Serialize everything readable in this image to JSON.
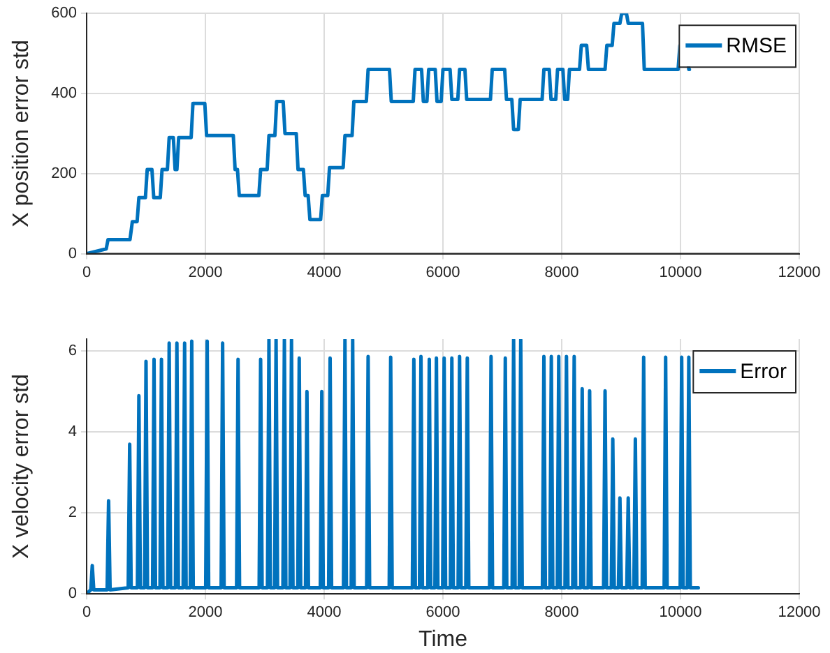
{
  "chart_data": [
    {
      "type": "line",
      "ylabel": "X position error std",
      "xlim": [
        0,
        12000
      ],
      "xticks": [
        0,
        2000,
        4000,
        6000,
        8000,
        10000,
        12000
      ],
      "ylim": [
        0,
        600
      ],
      "yticks": [
        0,
        200,
        400,
        600
      ],
      "grid": true,
      "legend": "top right",
      "marker": "none",
      "line_style": "solid",
      "series": [
        {
          "name": "RMSE",
          "color": "#0072bd",
          "x": [
            0,
            330,
            360,
            730,
            770,
            850,
            880,
            990,
            1020,
            1100,
            1130,
            1240,
            1270,
            1360,
            1390,
            1460,
            1490,
            1520,
            1550,
            1760,
            1790,
            1990,
            2020,
            2470,
            2500,
            2540,
            2570,
            2900,
            2930,
            3040,
            3070,
            3170,
            3200,
            3310,
            3340,
            3530,
            3560,
            3650,
            3680,
            3730,
            3760,
            3940,
            3970,
            4060,
            4090,
            4320,
            4350,
            4470,
            4500,
            4710,
            4740,
            5100,
            5130,
            5500,
            5530,
            5640,
            5670,
            5730,
            5760,
            5870,
            5900,
            5970,
            6000,
            6120,
            6150,
            6250,
            6280,
            6370,
            6400,
            6800,
            6830,
            7040,
            7070,
            7160,
            7190,
            7270,
            7300,
            7670,
            7700,
            7790,
            7820,
            7900,
            7930,
            8020,
            8050,
            8100,
            8130,
            8300,
            8330,
            8420,
            8450,
            8730,
            8760,
            8850,
            8880,
            8980,
            9010,
            9090,
            9120,
            9360,
            9390,
            9960,
            9990,
            10110,
            10140,
            10150
          ],
          "values": [
            0,
            12,
            35,
            35,
            80,
            80,
            140,
            140,
            210,
            210,
            140,
            140,
            210,
            210,
            290,
            290,
            210,
            210,
            290,
            290,
            375,
            375,
            295,
            295,
            210,
            210,
            145,
            145,
            210,
            210,
            295,
            295,
            380,
            380,
            300,
            300,
            210,
            210,
            145,
            145,
            85,
            85,
            145,
            145,
            215,
            215,
            295,
            295,
            380,
            380,
            460,
            460,
            380,
            380,
            460,
            460,
            380,
            380,
            460,
            460,
            380,
            380,
            460,
            460,
            385,
            385,
            460,
            460,
            385,
            385,
            460,
            460,
            385,
            385,
            310,
            310,
            385,
            385,
            460,
            460,
            385,
            385,
            460,
            460,
            385,
            385,
            460,
            460,
            520,
            520,
            460,
            460,
            520,
            520,
            575,
            575,
            600,
            600,
            575,
            575,
            460,
            460,
            520,
            520,
            460,
            460
          ]
        }
      ]
    },
    {
      "type": "line",
      "xlabel": "Time",
      "ylabel": "X velocity error std",
      "xlim": [
        0,
        12000
      ],
      "xticks": [
        0,
        2000,
        4000,
        6000,
        8000,
        10000,
        12000
      ],
      "ylim": [
        0,
        6.3
      ],
      "yticks": [
        0,
        2,
        4,
        6
      ],
      "grid": true,
      "legend": "top right",
      "marker": "none",
      "line_style": "solid",
      "series": [
        {
          "name": "Error",
          "color": "#0072bd",
          "x": [
            0,
            70,
            95,
            120,
            345,
            370,
            395,
            700,
            725,
            750,
            855,
            880,
            905,
            975,
            1000,
            1025,
            1110,
            1135,
            1160,
            1235,
            1260,
            1285,
            1365,
            1390,
            1415,
            1495,
            1520,
            1545,
            1625,
            1650,
            1675,
            1745,
            1770,
            1795,
            2005,
            2030,
            2055,
            2265,
            2290,
            2315,
            2525,
            2550,
            2575,
            2905,
            2930,
            2955,
            3045,
            3070,
            3095,
            3165,
            3190,
            3215,
            3305,
            3330,
            3355,
            3425,
            3450,
            3475,
            3555,
            3580,
            3605,
            3685,
            3710,
            3735,
            3935,
            3960,
            3985,
            4075,
            4100,
            4125,
            4325,
            4350,
            4375,
            4455,
            4480,
            4505,
            4715,
            4740,
            4765,
            5095,
            5120,
            5145,
            5485,
            5510,
            5535,
            5605,
            5630,
            5655,
            5745,
            5770,
            5795,
            5865,
            5890,
            5915,
            5995,
            6020,
            6045,
            6125,
            6150,
            6175,
            6255,
            6280,
            6305,
            6385,
            6410,
            6435,
            6785,
            6810,
            6835,
            7025,
            7050,
            7075,
            7165,
            7190,
            7215,
            7285,
            7310,
            7335,
            7675,
            7700,
            7725,
            7800,
            7825,
            7850,
            7925,
            7950,
            7975,
            8055,
            8080,
            8105,
            8185,
            8210,
            8235,
            8320,
            8345,
            8370,
            8445,
            8470,
            8495,
            8705,
            8730,
            8755,
            8835,
            8860,
            8885,
            8955,
            8980,
            9005,
            9095,
            9120,
            9145,
            9215,
            9240,
            9265,
            9355,
            9380,
            9405,
            9725,
            9750,
            9775,
            9995,
            10020,
            10045,
            10115,
            10140,
            10165,
            10300
          ],
          "values": [
            0,
            0.1,
            0.7,
            0.1,
            0.1,
            2.3,
            0.1,
            0.15,
            3.7,
            0.15,
            0.15,
            4.9,
            0.15,
            0.15,
            5.75,
            0.15,
            0.15,
            5.8,
            0.15,
            0.15,
            5.8,
            0.15,
            0.15,
            6.2,
            0.15,
            0.15,
            6.2,
            0.15,
            0.15,
            6.2,
            0.15,
            0.15,
            6.25,
            0.15,
            0.15,
            6.25,
            0.15,
            0.15,
            6.2,
            0.15,
            0.15,
            5.8,
            0.15,
            0.15,
            5.8,
            0.15,
            0.15,
            6.28,
            0.15,
            0.15,
            6.28,
            0.15,
            0.15,
            6.28,
            0.15,
            0.15,
            6.28,
            0.15,
            0.15,
            5.83,
            0.15,
            0.15,
            5,
            0.15,
            0.15,
            5,
            0.15,
            0.15,
            5.83,
            0.15,
            0.15,
            6.28,
            0.15,
            0.15,
            6.28,
            0.15,
            0.15,
            5.87,
            0.15,
            0.15,
            5.85,
            0.15,
            0.15,
            5.8,
            0.15,
            0.15,
            5.87,
            0.15,
            0.15,
            5.8,
            0.15,
            0.15,
            5.83,
            0.15,
            0.15,
            5.83,
            0.15,
            0.15,
            5.83,
            0.15,
            0.15,
            5.87,
            0.15,
            0.15,
            5.83,
            0.15,
            0.15,
            5.87,
            0.15,
            0.15,
            5.83,
            0.15,
            0.15,
            6.28,
            0.15,
            0.15,
            6.28,
            0.15,
            0.15,
            5.87,
            0.15,
            0.15,
            5.87,
            0.15,
            0.15,
            5.87,
            0.15,
            0.15,
            5.87,
            0.15,
            0.15,
            5.87,
            0.15,
            0.15,
            5.07,
            0.15,
            0.15,
            5.02,
            0.15,
            0.15,
            5.02,
            0.15,
            0.15,
            3.83,
            0.15,
            0.15,
            2.37,
            0.15,
            0.15,
            2.37,
            0.15,
            0.15,
            3.83,
            0.15,
            0.15,
            5.85,
            0.15,
            0.15,
            5.85,
            0.15,
            0.15,
            5.85,
            0.15,
            0.15,
            5.85,
            0.15,
            0.15
          ]
        }
      ]
    }
  ]
}
